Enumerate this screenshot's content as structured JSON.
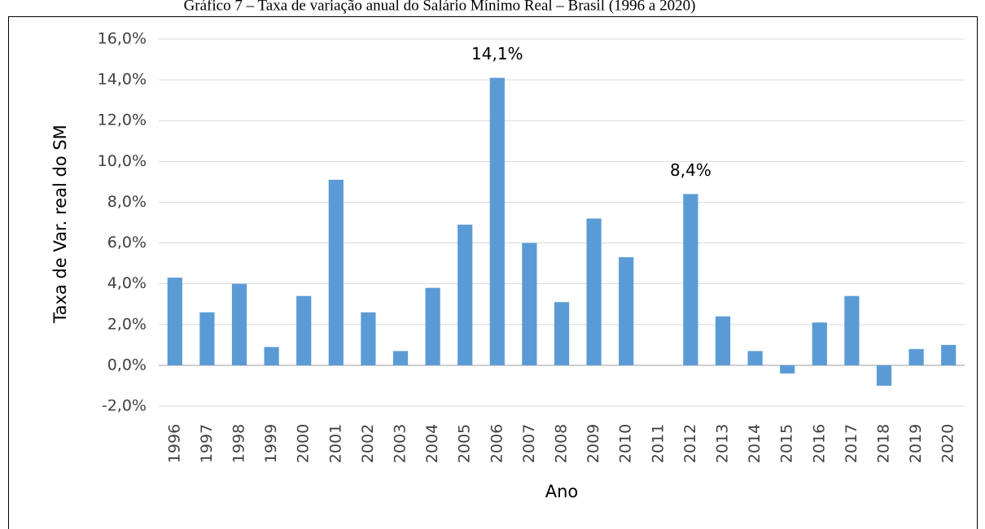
{
  "chart_data": {
    "type": "bar",
    "title": "Gráfico 7 – Taxa de variação anual do Salário Mínimo Real – Brasil (1996 a 2020)",
    "x_label": "Ano",
    "y_label": "Taxa de Var. real do SM",
    "categories": [
      "1996",
      "1997",
      "1998",
      "1999",
      "2000",
      "2001",
      "2002",
      "2003",
      "2004",
      "2005",
      "2006",
      "2007",
      "2008",
      "2009",
      "2010",
      "2011",
      "2012",
      "2013",
      "2014",
      "2015",
      "2016",
      "2017",
      "2018",
      "2019",
      "2020"
    ],
    "values": [
      4.3,
      2.6,
      4.0,
      0.9,
      3.4,
      9.1,
      2.6,
      0.7,
      3.8,
      6.9,
      14.1,
      6.0,
      3.1,
      7.2,
      5.3,
      0.0,
      8.4,
      2.4,
      0.7,
      -0.4,
      2.1,
      3.4,
      -1.0,
      0.8,
      1.0
    ],
    "value_labels": [
      null,
      null,
      null,
      null,
      null,
      null,
      null,
      null,
      null,
      null,
      "14,1%",
      null,
      null,
      null,
      null,
      null,
      "8,4%",
      null,
      null,
      null,
      null,
      null,
      null,
      null,
      null
    ],
    "color": "#5b9bd5",
    "ylim": [
      -2,
      16
    ],
    "yticks": [
      {
        "value": -2,
        "label": "-2,0%"
      },
      {
        "value": 0,
        "label": "0,0%"
      },
      {
        "value": 2,
        "label": "2,0%"
      },
      {
        "value": 4,
        "label": "4,0%"
      },
      {
        "value": 6,
        "label": "6,0%"
      },
      {
        "value": 8,
        "label": "8,0%"
      },
      {
        "value": 10,
        "label": "10,0%"
      },
      {
        "value": 12,
        "label": "12,0%"
      },
      {
        "value": 14,
        "label": "14,0%"
      },
      {
        "value": 16,
        "label": "16,0%"
      }
    ],
    "grid": true
  }
}
